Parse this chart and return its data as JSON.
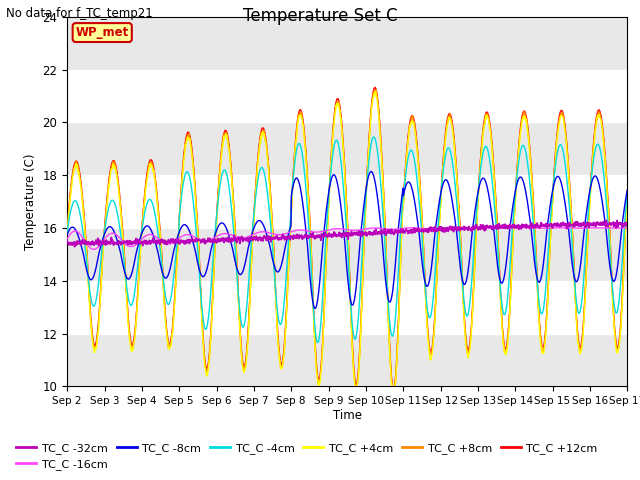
{
  "title": "Temperature Set C",
  "suptitle": "No data for f_TC_temp21",
  "xlabel": "Time",
  "ylabel": "Temperature (C)",
  "ylim": [
    10,
    24
  ],
  "background_color": "#e8e8e8",
  "plot_bg_light": "#f0f0f0",
  "legend_box_label": "WP_met",
  "legend_box_color": "#ffff99",
  "legend_box_border": "#cc0000",
  "series_colors": {
    "TC_C -32cm": "#bb00bb",
    "TC_C -16cm": "#ff44ff",
    "TC_C -8cm": "#0000ee",
    "TC_C -4cm": "#00dddd",
    "TC_C +4cm": "#ffff00",
    "TC_C +8cm": "#ff8800",
    "TC_C +12cm": "#ff0000"
  },
  "x_tick_labels": [
    "Sep 2",
    "Sep 3",
    "Sep 4",
    "Sep 5",
    "Sep 6",
    "Sep 7",
    "Sep 8",
    "Sep 9",
    "Sep 10",
    "Sep 11",
    "Sep 12",
    "Sep 13",
    "Sep 14",
    "Sep 15",
    "Sep 16",
    "Sep 17"
  ],
  "yticks": [
    10,
    12,
    14,
    16,
    18,
    20,
    22,
    24
  ],
  "figsize": [
    6.4,
    4.8
  ],
  "dpi": 100
}
